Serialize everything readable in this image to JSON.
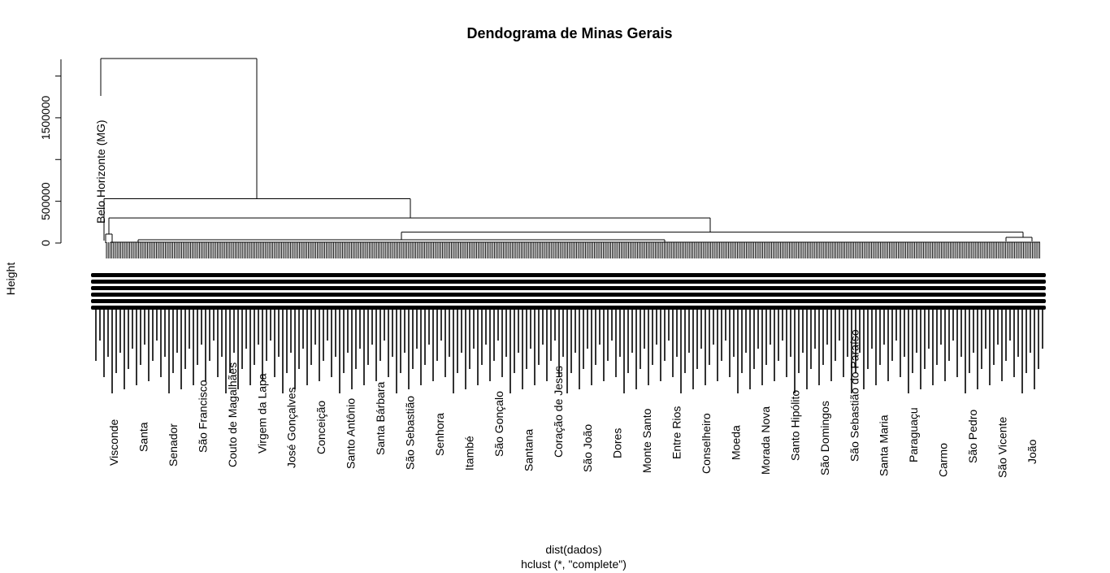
{
  "chart_data": {
    "type": "dendrogram",
    "title": "Dendograma de Minas Gerais",
    "ylabel": "Height",
    "xlabel": "dist(dados)",
    "sub": "hclust (*, \"complete\")",
    "ylim": [
      0,
      2200000
    ],
    "y_ticks": [
      {
        "value": 0,
        "label": "0"
      },
      {
        "value": 500000,
        "label": "500000"
      },
      {
        "value": 1000000,
        "label": ""
      },
      {
        "value": 1500000,
        "label": "1500000"
      },
      {
        "value": 2000000,
        "label": ""
      }
    ],
    "main_merges": [
      {
        "name": "root",
        "height": 2210000,
        "left": "belo-horizonte-leaf",
        "right": "node-a"
      },
      {
        "name": "node-a",
        "height": 530000,
        "left": "cluster-left",
        "right": "node-b"
      },
      {
        "name": "node-b",
        "height": 300000,
        "left": "cluster-left-sub",
        "right": "node-c"
      },
      {
        "name": "node-c",
        "height": 130000,
        "left": "cluster-mid",
        "right": "cluster-right"
      }
    ],
    "highlighted_leaf": "Belo Horizonte (MG)",
    "visible_leaf_labels": [
      "Belo Horizonte (MG)",
      "Visconde",
      "Santa",
      "Senador",
      "São Francisco",
      "Couto de Magalhães",
      "Virgem da Lapa",
      "José Gonçalves",
      "Conceição",
      "Santo Antônio",
      "Santa Bárbara",
      "São Sebastião",
      "Senhora",
      "Itambé",
      "São Gonçalo",
      "Santana",
      "Coração de Jesus",
      "São João",
      "Dores",
      "Monte Santo",
      "Entre Rios",
      "Conselheiro",
      "Moeda",
      "Morada Nova",
      "Santo Hipólito",
      "São Domingos",
      "São Sebastião do Paraíso",
      "Santa Maria",
      "Paraguaçu",
      "Carmo",
      "São Pedro",
      "São Vicente",
      "João"
    ]
  }
}
